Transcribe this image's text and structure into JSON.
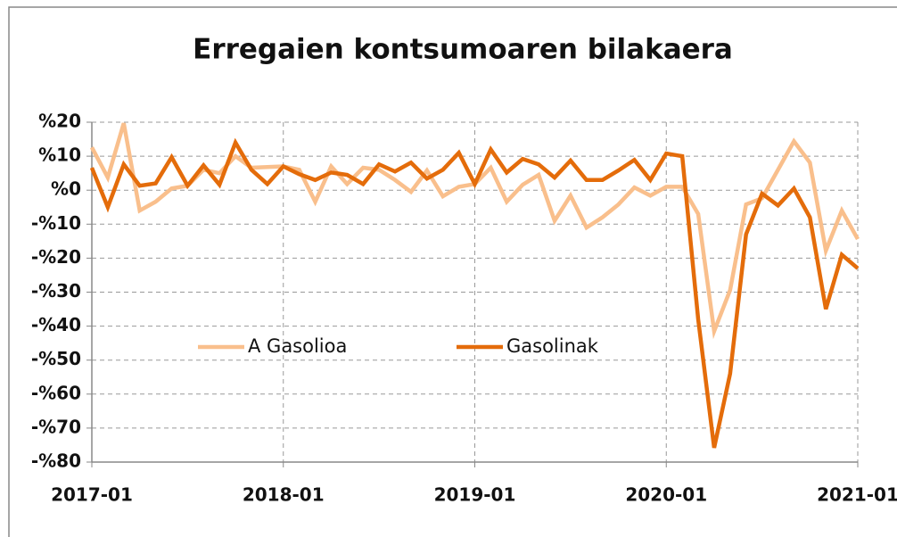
{
  "chart_data": {
    "type": "line",
    "title": "Erregaien kontsumoaren bilakaera",
    "categories": [
      "2017-01",
      null,
      null,
      null,
      null,
      null,
      null,
      null,
      null,
      null,
      null,
      null,
      "2018-01",
      null,
      null,
      null,
      null,
      null,
      null,
      null,
      null,
      null,
      null,
      null,
      "2019-01",
      null,
      null,
      null,
      null,
      null,
      null,
      null,
      null,
      null,
      null,
      null,
      "2020-01",
      null,
      null,
      null,
      null,
      null,
      null,
      null,
      null,
      null,
      null,
      null,
      "2021-01"
    ],
    "series": [
      {
        "name": "A Gasolioa",
        "color": "#f9bf8c",
        "values": [
          12.6,
          3.7,
          19.7,
          -6,
          -3.4,
          0.5,
          1.3,
          6,
          5,
          10,
          6.6,
          6.8,
          7,
          6,
          -3.4,
          7,
          1.8,
          6.6,
          6,
          3,
          -0.5,
          5.8,
          -1.8,
          1,
          1.8,
          6.6,
          -3.4,
          1.6,
          4.5,
          -9,
          -1.6,
          -11,
          -8,
          -4.2,
          0.8,
          -1.6,
          1,
          1,
          -7,
          -41.5,
          -29.4,
          -4.2,
          -2.4,
          6,
          14.4,
          8.1,
          -17.8,
          -6,
          -14.4
        ]
      },
      {
        "name": "Gasolinak",
        "color": "#e46c0a",
        "values": [
          6.6,
          -5,
          7.6,
          1.3,
          2,
          9.7,
          1.3,
          7.3,
          1.6,
          14,
          6,
          1.8,
          7,
          4.7,
          3,
          5.2,
          4.5,
          1.8,
          7.6,
          5.5,
          8.1,
          3.4,
          6,
          11,
          1.8,
          12,
          5.2,
          9.2,
          7.6,
          3.7,
          8.7,
          3,
          3,
          5.8,
          8.9,
          3,
          10.8,
          10,
          -38,
          -75.8,
          -54,
          -13,
          -1,
          -4.5,
          0.5,
          -8,
          -35,
          -19,
          -23
        ]
      }
    ],
    "ylim": [
      -80,
      20
    ],
    "yticks": [
      {
        "value": 20,
        "label": "%20"
      },
      {
        "value": 10,
        "label": "%10"
      },
      {
        "value": 0,
        "label": "%0"
      },
      {
        "value": -10,
        "label": "-%10"
      },
      {
        "value": -20,
        "label": "-%20"
      },
      {
        "value": -30,
        "label": "-%30"
      },
      {
        "value": -40,
        "label": "-%40"
      },
      {
        "value": -50,
        "label": "-%50"
      },
      {
        "value": -60,
        "label": "-%60"
      },
      {
        "value": -70,
        "label": "-%70"
      },
      {
        "value": -80,
        "label": "-%80"
      }
    ],
    "grid": true,
    "legend": "middle-left"
  }
}
